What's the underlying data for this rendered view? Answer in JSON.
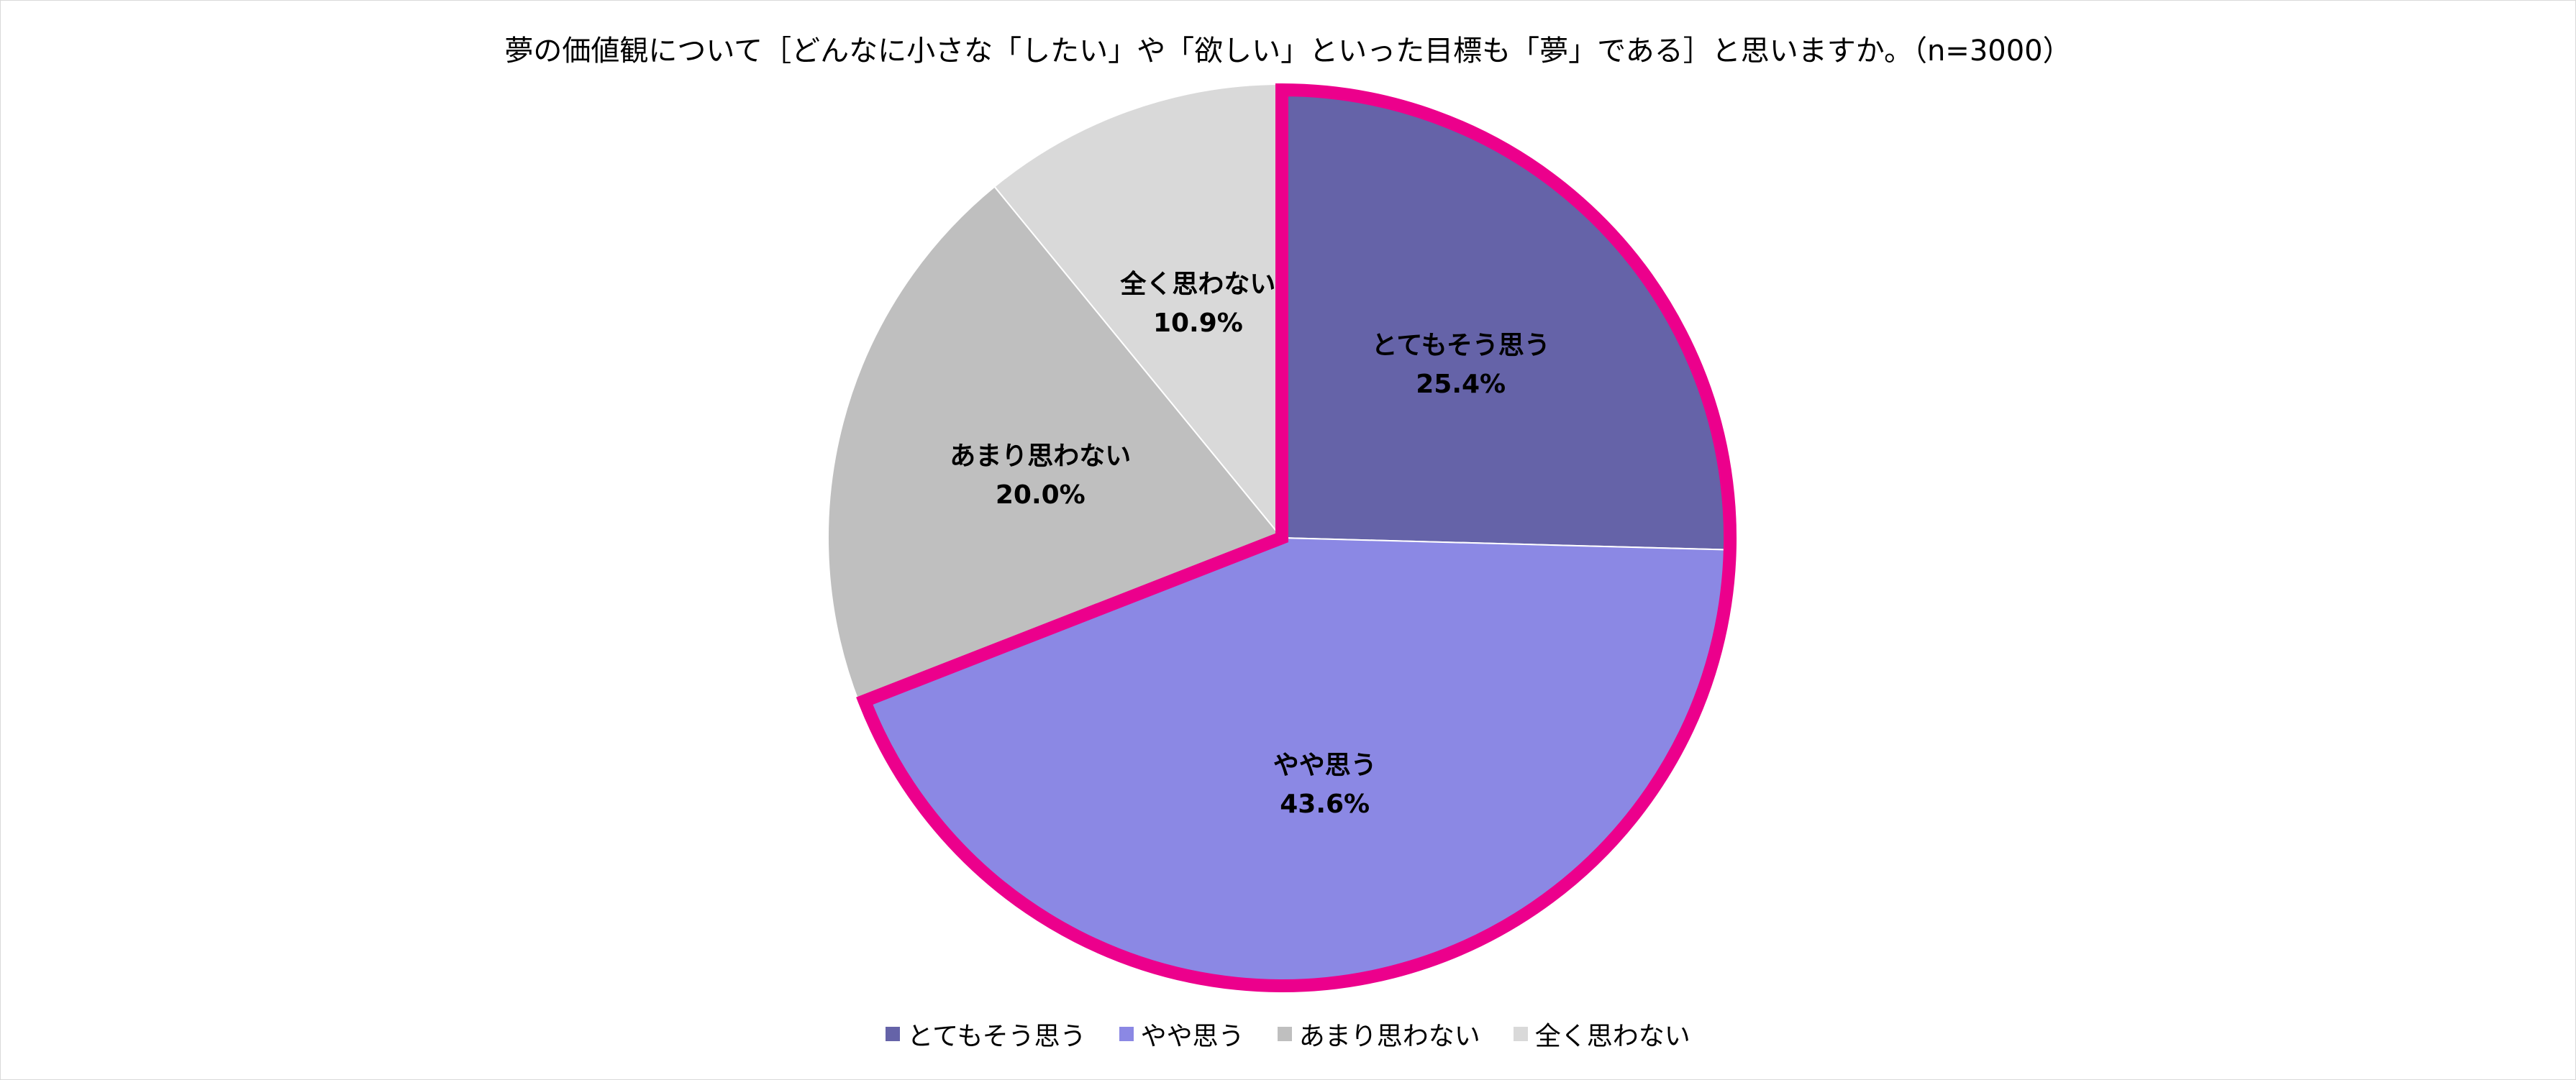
{
  "chart_data": {
    "type": "pie",
    "title": "夢の価値観について［どんなに小さな「したい」や「欲しい」といった目標も「夢」である］と思いますか。（n=3000）",
    "categories": [
      "とてもそう思う",
      "やや思う",
      "あまり思わない",
      "全く思わない"
    ],
    "values": [
      25.4,
      43.6,
      20.0,
      10.9
    ],
    "value_labels": [
      "25.4%",
      "43.6%",
      "20.0%",
      "10.9%"
    ],
    "colors": [
      "#6563A8",
      "#8B88E4",
      "#BFBFBF",
      "#D9D9D9"
    ],
    "highlight": {
      "categories": [
        "とてもそう思う",
        "やや思う"
      ],
      "outline_color": "#EC008C"
    },
    "start_angle": "12 o'clock",
    "direction": "clockwise",
    "legend_position": "bottom"
  }
}
